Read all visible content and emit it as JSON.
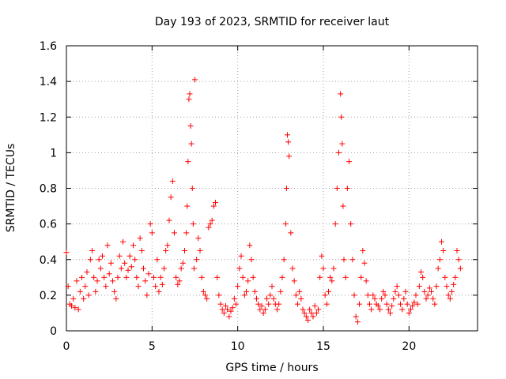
{
  "chart_data": {
    "type": "scatter",
    "title": "Day 193 of 2023, SRMTID for receiver laut",
    "xlabel": "GPS time / hours",
    "ylabel": "SRMTID / TECUs",
    "xlim": [
      0,
      24
    ],
    "ylim": [
      0,
      1.6
    ],
    "xticks": [
      0,
      5,
      10,
      15,
      20
    ],
    "yticks": [
      0,
      0.2,
      0.4,
      0.6,
      0.8,
      1,
      1.2,
      1.4,
      1.6
    ],
    "ytick_labels": [
      "0",
      "0.2",
      "0.4",
      "0.6",
      "0.8",
      "1",
      "1.2",
      "1.4",
      "1.6"
    ],
    "xtick_labels": [
      "0",
      "5",
      "10",
      "15",
      "20"
    ],
    "grid": true,
    "marker": "+",
    "color": "#ff0000",
    "series": [
      {
        "name": "SRMTID",
        "x": [
          0.0,
          0.1,
          0.2,
          0.3,
          0.4,
          0.5,
          0.6,
          0.7,
          0.8,
          0.9,
          1.0,
          1.1,
          1.2,
          1.3,
          1.4,
          1.5,
          1.6,
          1.7,
          1.8,
          1.9,
          2.0,
          2.1,
          2.2,
          2.3,
          2.4,
          2.5,
          2.6,
          2.7,
          2.8,
          2.9,
          3.0,
          3.1,
          3.2,
          3.3,
          3.4,
          3.5,
          3.6,
          3.7,
          3.8,
          3.9,
          4.0,
          4.1,
          4.2,
          4.3,
          4.4,
          4.5,
          4.6,
          4.7,
          4.8,
          4.9,
          5.0,
          5.1,
          5.2,
          5.3,
          5.4,
          5.5,
          5.6,
          5.7,
          5.8,
          5.9,
          6.0,
          6.1,
          6.2,
          6.3,
          6.4,
          6.5,
          6.6,
          6.7,
          6.8,
          6.9,
          7.0,
          7.05,
          7.1,
          7.15,
          7.2,
          7.25,
          7.3,
          7.35,
          7.4,
          7.45,
          7.5,
          7.6,
          7.7,
          7.8,
          7.9,
          8.0,
          8.1,
          8.2,
          8.3,
          8.4,
          8.5,
          8.6,
          8.7,
          8.8,
          8.9,
          9.0,
          9.1,
          9.2,
          9.3,
          9.4,
          9.5,
          9.6,
          9.7,
          9.8,
          9.9,
          10.0,
          10.1,
          10.2,
          10.3,
          10.4,
          10.5,
          10.6,
          10.7,
          10.8,
          10.9,
          11.0,
          11.1,
          11.2,
          11.3,
          11.4,
          11.5,
          11.6,
          11.7,
          11.8,
          11.9,
          12.0,
          12.1,
          12.2,
          12.3,
          12.4,
          12.5,
          12.6,
          12.7,
          12.8,
          12.85,
          12.9,
          12.95,
          13.0,
          13.1,
          13.2,
          13.3,
          13.4,
          13.5,
          13.6,
          13.7,
          13.8,
          13.9,
          14.0,
          14.1,
          14.2,
          14.3,
          14.4,
          14.5,
          14.6,
          14.7,
          14.8,
          14.9,
          15.0,
          15.1,
          15.2,
          15.3,
          15.4,
          15.5,
          15.6,
          15.7,
          15.8,
          15.9,
          16.0,
          16.05,
          16.1,
          16.15,
          16.2,
          16.3,
          16.4,
          16.5,
          16.6,
          16.7,
          16.8,
          16.9,
          17.0,
          17.1,
          17.2,
          17.3,
          17.4,
          17.5,
          17.6,
          17.7,
          17.8,
          17.9,
          18.0,
          18.1,
          18.2,
          18.3,
          18.4,
          18.5,
          18.6,
          18.7,
          18.8,
          18.9,
          19.0,
          19.1,
          19.2,
          19.3,
          19.4,
          19.5,
          19.6,
          19.7,
          19.8,
          19.9,
          20.0,
          20.1,
          20.2,
          20.3,
          20.4,
          20.5,
          20.6,
          20.7,
          20.8,
          20.9,
          21.0,
          21.1,
          21.2,
          21.3,
          21.4,
          21.5,
          21.6,
          21.7,
          21.8,
          21.9,
          22.0,
          22.1,
          22.2,
          22.3,
          22.4,
          22.5,
          22.6,
          22.7,
          22.8,
          22.9,
          23.0
        ],
        "y": [
          0.44,
          0.25,
          0.15,
          0.14,
          0.18,
          0.13,
          0.28,
          0.12,
          0.22,
          0.3,
          0.18,
          0.25,
          0.33,
          0.2,
          0.4,
          0.45,
          0.3,
          0.22,
          0.28,
          0.4,
          0.35,
          0.42,
          0.3,
          0.25,
          0.48,
          0.32,
          0.38,
          0.28,
          0.22,
          0.18,
          0.3,
          0.42,
          0.35,
          0.5,
          0.38,
          0.3,
          0.34,
          0.42,
          0.36,
          0.48,
          0.4,
          0.3,
          0.25,
          0.52,
          0.45,
          0.35,
          0.28,
          0.2,
          0.32,
          0.6,
          0.55,
          0.3,
          0.25,
          0.4,
          0.22,
          0.3,
          0.26,
          0.35,
          0.45,
          0.48,
          0.62,
          0.75,
          0.84,
          0.55,
          0.3,
          0.26,
          0.28,
          0.35,
          0.38,
          0.45,
          0.55,
          0.7,
          0.95,
          1.3,
          1.33,
          1.15,
          1.05,
          0.8,
          0.6,
          0.35,
          1.41,
          0.4,
          0.52,
          0.45,
          0.3,
          0.22,
          0.2,
          0.18,
          0.58,
          0.6,
          0.62,
          0.7,
          0.72,
          0.3,
          0.2,
          0.15,
          0.12,
          0.1,
          0.14,
          0.12,
          0.08,
          0.11,
          0.13,
          0.18,
          0.15,
          0.25,
          0.35,
          0.42,
          0.3,
          0.2,
          0.22,
          0.28,
          0.48,
          0.4,
          0.3,
          0.22,
          0.18,
          0.15,
          0.12,
          0.14,
          0.1,
          0.12,
          0.18,
          0.15,
          0.2,
          0.25,
          0.18,
          0.15,
          0.12,
          0.15,
          0.22,
          0.3,
          0.4,
          0.6,
          0.8,
          1.1,
          1.06,
          0.98,
          0.55,
          0.35,
          0.28,
          0.2,
          0.15,
          0.22,
          0.18,
          0.12,
          0.1,
          0.08,
          0.06,
          0.12,
          0.1,
          0.08,
          0.14,
          0.1,
          0.12,
          0.3,
          0.42,
          0.35,
          0.2,
          0.15,
          0.22,
          0.3,
          0.28,
          0.35,
          0.6,
          0.8,
          1.0,
          1.33,
          1.2,
          1.05,
          0.7,
          0.4,
          0.3,
          0.8,
          0.95,
          0.6,
          0.4,
          0.2,
          0.08,
          0.05,
          0.15,
          0.3,
          0.45,
          0.38,
          0.28,
          0.2,
          0.15,
          0.12,
          0.2,
          0.18,
          0.15,
          0.14,
          0.12,
          0.18,
          0.22,
          0.2,
          0.15,
          0.12,
          0.1,
          0.14,
          0.18,
          0.22,
          0.25,
          0.2,
          0.15,
          0.12,
          0.18,
          0.22,
          0.15,
          0.1,
          0.12,
          0.14,
          0.16,
          0.2,
          0.15,
          0.25,
          0.33,
          0.3,
          0.22,
          0.18,
          0.2,
          0.24,
          0.22,
          0.18,
          0.15,
          0.25,
          0.35,
          0.4,
          0.5,
          0.45,
          0.3,
          0.25,
          0.2,
          0.18,
          0.22,
          0.26,
          0.3,
          0.45,
          0.4,
          0.35
        ]
      }
    ]
  }
}
